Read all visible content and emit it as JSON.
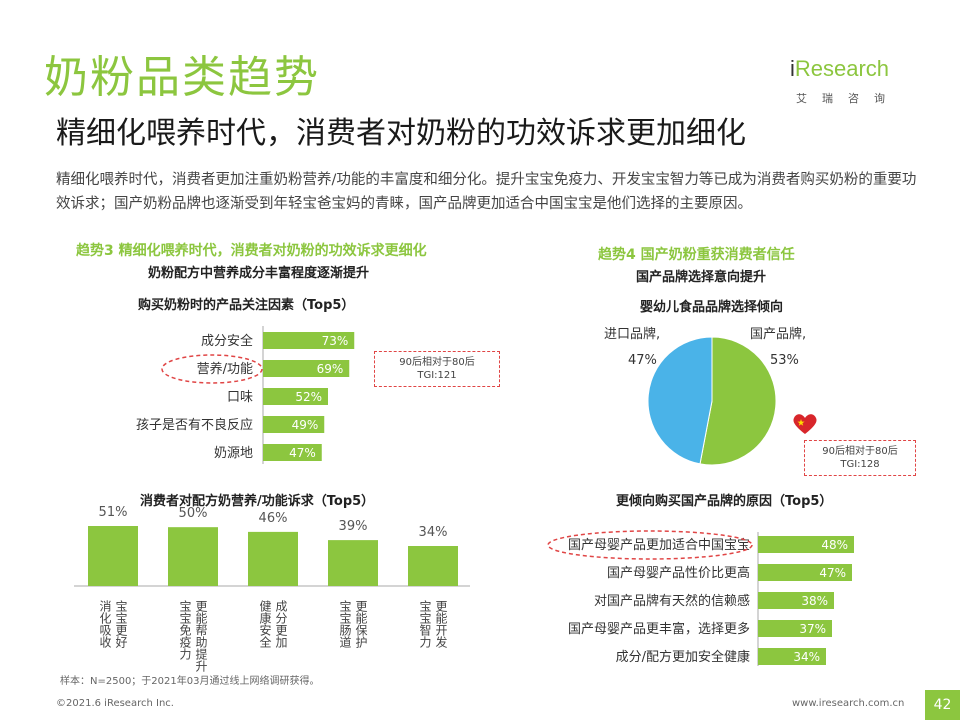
{
  "header": {
    "title": "奶粉品类趋势",
    "subtitle": "精细化喂养时代，消费者对奶粉的功效诉求更加细化",
    "intro": "精细化喂养时代，消费者更加注重奶粉营养/功能的丰富度和细分化。提升宝宝免疫力、开发宝宝智力等已成为消费者购买奶粉的重要功效诉求；国产奶粉品牌也逐渐受到年轻宝爸宝妈的青睐，国产品牌更加适合中国宝宝是他们选择的主要原因。"
  },
  "logo": {
    "name_prefix": "i",
    "name": "Research",
    "sub": "艾瑞咨询"
  },
  "left_section": {
    "title": "趋势3 精细化喂养时代，消费者对奶粉的功效诉求更细化",
    "subtitle": "奶粉配方中营养成分丰富程度逐渐提升",
    "note": [
      "90后相对于80后",
      "TGI:121"
    ]
  },
  "right_section": {
    "title": "趋势4 国产奶粉重获消费者信任",
    "subtitle": "国产品牌选择意向提升",
    "note": [
      "90后相对于80后",
      "TGI:128"
    ]
  },
  "footer": {
    "sample_note": "样本：N=2500；于2021年03月通过线上网络调研获得。",
    "copyright": "©2021.6 iResearch Inc.",
    "url": "www.iresearch.com.cn",
    "page": "42"
  },
  "colors": {
    "accent": "#8cc63f",
    "pie_blue": "#4ab3e8",
    "highlight": "#e04545"
  },
  "chart_data": [
    {
      "type": "bar",
      "orientation": "horizontal",
      "title": "购买奶粉时的产品关注因素（Top5）",
      "categories": [
        "成分安全",
        "营养/功能",
        "口味",
        "孩子是否有不良反应",
        "奶源地"
      ],
      "values": [
        73,
        69,
        52,
        49,
        47
      ],
      "value_labels": [
        "73%",
        "69%",
        "52%",
        "49%",
        "47%"
      ],
      "highlight_index": 1,
      "unit": "%"
    },
    {
      "type": "bar",
      "orientation": "vertical",
      "title": "消费者对配方奶营养/功能诉求（Top5）",
      "categories": [
        "宝宝更好消化吸收",
        "更能帮助提升宝宝免疫力",
        "成分更加健康安全",
        "更能保护宝宝肠道",
        "更能开发宝宝智力"
      ],
      "values": [
        51,
        50,
        46,
        39,
        34
      ],
      "value_labels": [
        "51%",
        "50%",
        "46%",
        "39%",
        "34%"
      ],
      "unit": "%"
    },
    {
      "type": "pie",
      "title": "婴幼儿食品品牌选择倾向",
      "categories": [
        "国产品牌",
        "进口品牌"
      ],
      "values": [
        53,
        47
      ],
      "labels": [
        "国产品牌,",
        "进口品牌,"
      ],
      "value_labels": [
        "53%",
        "47%"
      ],
      "colors": [
        "#8cc63f",
        "#4ab3e8"
      ]
    },
    {
      "type": "bar",
      "orientation": "horizontal",
      "title": "更倾向购买国产品牌的原因（Top5）",
      "categories": [
        "国产母婴产品更加适合中国宝宝",
        "国产母婴产品性价比更高",
        "对国产品牌有天然的信赖感",
        "国产母婴产品更丰富，选择更多",
        "成分/配方更加安全健康"
      ],
      "values": [
        48,
        47,
        38,
        37,
        34
      ],
      "value_labels": [
        "48%",
        "47%",
        "38%",
        "37%",
        "34%"
      ],
      "highlight_index": 0,
      "unit": "%"
    }
  ]
}
